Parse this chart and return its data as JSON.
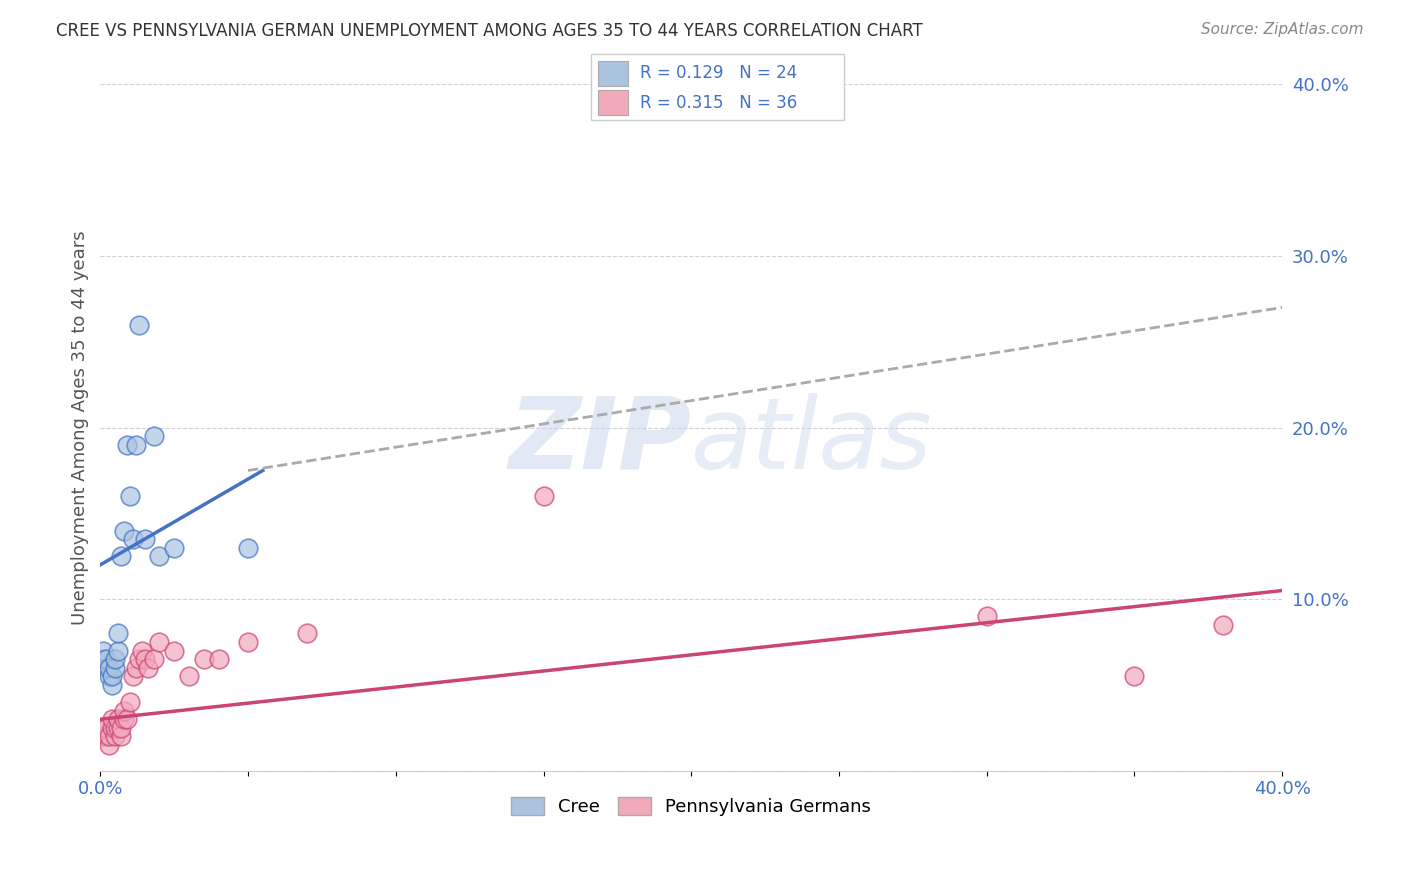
{
  "title": "CREE VS PENNSYLVANIA GERMAN UNEMPLOYMENT AMONG AGES 35 TO 44 YEARS CORRELATION CHART",
  "source": "Source: ZipAtlas.com",
  "ylabel": "Unemployment Among Ages 35 to 44 years",
  "legend_label1": "Cree",
  "legend_label2": "Pennsylvania Germans",
  "r1": "0.129",
  "n1": "24",
  "r2": "0.315",
  "n2": "36",
  "cree_color": "#aac4e0",
  "pg_color": "#f2aabb",
  "trend1_color": "#4472c4",
  "trend2_color": "#cc4477",
  "trend_gray_color": "#aaaaaa",
  "xlim": [
    0,
    0.4
  ],
  "ylim": [
    0,
    0.4
  ],
  "background": "#ffffff",
  "cree_x": [
    0.001,
    0.001,
    0.002,
    0.002,
    0.003,
    0.003,
    0.004,
    0.004,
    0.005,
    0.005,
    0.006,
    0.006,
    0.007,
    0.008,
    0.009,
    0.01,
    0.011,
    0.012,
    0.013,
    0.015,
    0.018,
    0.02,
    0.025,
    0.05
  ],
  "cree_y": [
    0.065,
    0.07,
    0.06,
    0.065,
    0.055,
    0.06,
    0.05,
    0.055,
    0.06,
    0.065,
    0.07,
    0.08,
    0.125,
    0.14,
    0.19,
    0.16,
    0.135,
    0.19,
    0.26,
    0.135,
    0.195,
    0.125,
    0.13,
    0.13
  ],
  "pg_x": [
    0.001,
    0.001,
    0.002,
    0.002,
    0.003,
    0.003,
    0.004,
    0.004,
    0.005,
    0.005,
    0.006,
    0.006,
    0.007,
    0.007,
    0.008,
    0.008,
    0.009,
    0.01,
    0.011,
    0.012,
    0.013,
    0.014,
    0.015,
    0.016,
    0.018,
    0.02,
    0.025,
    0.03,
    0.035,
    0.04,
    0.05,
    0.07,
    0.15,
    0.3,
    0.35,
    0.38
  ],
  "pg_y": [
    0.02,
    0.025,
    0.02,
    0.025,
    0.015,
    0.02,
    0.025,
    0.03,
    0.02,
    0.025,
    0.025,
    0.03,
    0.02,
    0.025,
    0.03,
    0.035,
    0.03,
    0.04,
    0.055,
    0.06,
    0.065,
    0.07,
    0.065,
    0.06,
    0.065,
    0.075,
    0.07,
    0.055,
    0.065,
    0.065,
    0.075,
    0.08,
    0.16,
    0.09,
    0.055,
    0.085
  ],
  "trend1_x0": 0.0,
  "trend1_x1": 0.055,
  "trend1_y0": 0.12,
  "trend1_y1": 0.175,
  "trend2_x0": 0.0,
  "trend2_x1": 0.4,
  "trend2_y0": 0.03,
  "trend2_y1": 0.105,
  "trendg_x0": 0.05,
  "trendg_x1": 0.4,
  "trendg_y0": 0.175,
  "trendg_y1": 0.27
}
